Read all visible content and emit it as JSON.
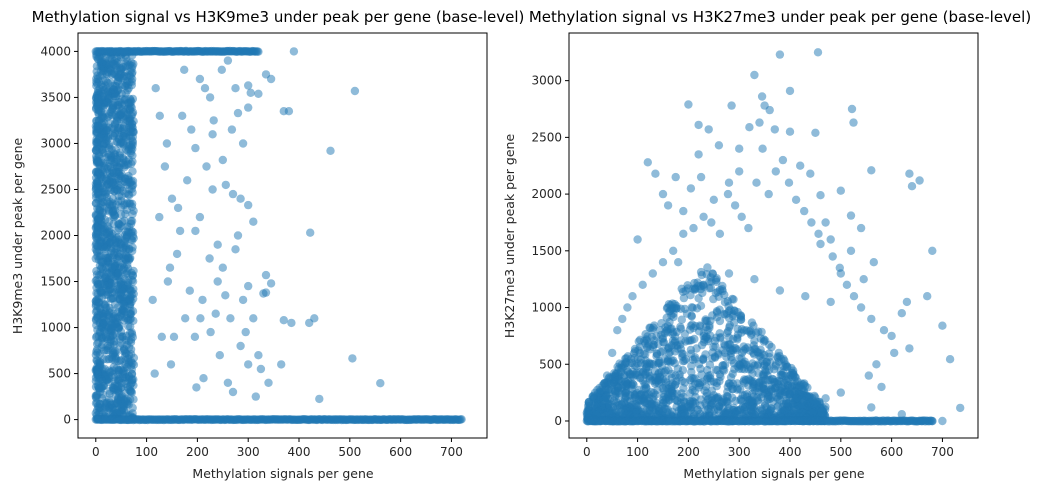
{
  "chart_data": [
    {
      "type": "scatter",
      "title": "Methylation signal vs H3K9me3 under peak per gene (base-level)",
      "xlabel": "Methylation signals per gene",
      "ylabel": "H3K9me3 under peak per gene",
      "xlim": [
        -35,
        770
      ],
      "ylim": [
        -200,
        4200
      ],
      "xticks": [
        0,
        100,
        200,
        300,
        400,
        500,
        600,
        700
      ],
      "yticks": [
        0,
        500,
        1000,
        1500,
        2000,
        2500,
        3000,
        3500,
        4000
      ],
      "xtick_labels": [
        "0",
        "100",
        "200",
        "300",
        "400",
        "500",
        "600",
        "700"
      ],
      "ytick_labels": [
        "0",
        "500",
        "1000",
        "1500",
        "2000",
        "2500",
        "3000",
        "3500",
        "4000"
      ],
      "grid": false,
      "marker_color": "#1f77b4",
      "marker_alpha": 0.5,
      "points": [
        [
          390,
          4000
        ],
        [
          510,
          3570
        ],
        [
          462,
          2920
        ],
        [
          422,
          2030
        ],
        [
          505,
          665
        ],
        [
          560,
          395
        ],
        [
          440,
          225
        ],
        [
          420,
          1050
        ],
        [
          430,
          1100
        ],
        [
          370,
          1080
        ],
        [
          385,
          1050
        ],
        [
          365,
          600
        ],
        [
          340,
          400
        ],
        [
          335,
          1570
        ],
        [
          345,
          1480
        ],
        [
          335,
          1380
        ],
        [
          330,
          1370
        ],
        [
          310,
          2150
        ],
        [
          300,
          2330
        ],
        [
          285,
          2400
        ],
        [
          300,
          3390
        ],
        [
          305,
          3550
        ],
        [
          300,
          3630
        ],
        [
          345,
          3700
        ],
        [
          370,
          3350
        ],
        [
          380,
          3350
        ],
        [
          280,
          3330
        ],
        [
          320,
          3540
        ],
        [
          335,
          3750
        ],
        [
          300,
          1450
        ],
        [
          250,
          1650
        ],
        [
          260,
          3900
        ],
        [
          250,
          2820
        ],
        [
          270,
          2450
        ],
        [
          280,
          2000
        ],
        [
          290,
          1300
        ],
        [
          310,
          1100
        ],
        [
          320,
          700
        ],
        [
          325,
          550
        ],
        [
          260,
          400
        ],
        [
          270,
          300
        ],
        [
          295,
          950
        ],
        [
          275,
          1850
        ],
        [
          240,
          1500
        ],
        [
          230,
          3100
        ],
        [
          225,
          3500
        ],
        [
          215,
          3600
        ],
        [
          205,
          3700
        ],
        [
          210,
          1300
        ],
        [
          195,
          900
        ],
        [
          185,
          1400
        ],
        [
          180,
          2600
        ],
        [
          170,
          3300
        ],
        [
          160,
          1800
        ],
        [
          150,
          2400
        ],
        [
          140,
          3000
        ],
        [
          130,
          900
        ],
        [
          125,
          2200
        ],
        [
          118,
          3600
        ],
        [
          112,
          1300
        ],
        [
          205,
          2200
        ],
        [
          230,
          2500
        ],
        [
          240,
          1900
        ],
        [
          255,
          1350
        ],
        [
          265,
          1100
        ],
        [
          285,
          800
        ],
        [
          300,
          600
        ],
        [
          315,
          250
        ],
        [
          275,
          3600
        ],
        [
          290,
          3000
        ],
        [
          248,
          3800
        ],
        [
          218,
          2750
        ],
        [
          196,
          2950
        ],
        [
          176,
          1100
        ],
        [
          166,
          2050
        ],
        [
          146,
          1650
        ],
        [
          136,
          2750
        ],
        [
          126,
          3300
        ],
        [
          116,
          500
        ],
        [
          224,
          1750
        ],
        [
          236,
          1150
        ],
        [
          244,
          700
        ],
        [
          212,
          450
        ],
        [
          198,
          350
        ],
        [
          188,
          3150
        ],
        [
          174,
          3800
        ],
        [
          162,
          2300
        ],
        [
          154,
          900
        ],
        [
          148,
          600
        ],
        [
          142,
          1500
        ],
        [
          226,
          950
        ],
        [
          206,
          1100
        ],
        [
          196,
          2050
        ],
        [
          232,
          3250
        ],
        [
          256,
          2550
        ],
        [
          268,
          3150
        ]
      ],
      "dense_region": {
        "x_range": [
          0,
          75
        ],
        "y_range": [
          0,
          4000
        ]
      },
      "dense_bands": [
        {
          "x_range": [
            0,
            720
          ],
          "y": 0
        },
        {
          "x_range": [
            0,
            320
          ],
          "y": 4000
        }
      ]
    },
    {
      "type": "scatter",
      "title": "Methylation signal vs H3K27me3 under peak per gene (base-level)",
      "xlabel": "Methylation signals per gene",
      "ylabel": "H3K27me3 under peak per gene",
      "xlim": [
        -35,
        770
      ],
      "ylim": [
        -150,
        3420
      ],
      "xticks": [
        0,
        100,
        200,
        300,
        400,
        500,
        600,
        700
      ],
      "yticks": [
        0,
        500,
        1000,
        1500,
        2000,
        2500,
        3000
      ],
      "xtick_labels": [
        "0",
        "100",
        "200",
        "300",
        "400",
        "500",
        "600",
        "700"
      ],
      "ytick_labels": [
        "0",
        "500",
        "1000",
        "1500",
        "2000",
        "2500",
        "3000"
      ],
      "grid": false,
      "marker_color": "#1f77b4",
      "marker_alpha": 0.5,
      "points": [
        [
          455,
          3250
        ],
        [
          380,
          3230
        ],
        [
          330,
          3050
        ],
        [
          400,
          2910
        ],
        [
          345,
          2860
        ],
        [
          350,
          2780
        ],
        [
          285,
          2780
        ],
        [
          200,
          2790
        ],
        [
          400,
          2550
        ],
        [
          450,
          2540
        ],
        [
          522,
          2750
        ],
        [
          525,
          2630
        ],
        [
          560,
          2210
        ],
        [
          635,
          2180
        ],
        [
          640,
          2070
        ],
        [
          655,
          2120
        ],
        [
          680,
          1500
        ],
        [
          670,
          1100
        ],
        [
          700,
          840
        ],
        [
          715,
          545
        ],
        [
          735,
          115
        ],
        [
          635,
          640
        ],
        [
          630,
          1050
        ],
        [
          620,
          950
        ],
        [
          570,
          500
        ],
        [
          555,
          400
        ],
        [
          120,
          2280
        ],
        [
          135,
          2180
        ],
        [
          220,
          2610
        ],
        [
          240,
          2570
        ],
        [
          220,
          2350
        ],
        [
          260,
          2430
        ],
        [
          300,
          2400
        ],
        [
          320,
          2590
        ],
        [
          340,
          2630
        ],
        [
          360,
          2740
        ],
        [
          370,
          2570
        ],
        [
          420,
          2250
        ],
        [
          440,
          2180
        ],
        [
          460,
          1990
        ],
        [
          500,
          2030
        ],
        [
          520,
          1810
        ],
        [
          540,
          1700
        ],
        [
          480,
          1600
        ],
        [
          460,
          1560
        ],
        [
          300,
          2200
        ],
        [
          280,
          2100
        ],
        [
          250,
          1950
        ],
        [
          230,
          1800
        ],
        [
          210,
          1700
        ],
        [
          190,
          1650
        ],
        [
          170,
          1500
        ],
        [
          150,
          1400
        ],
        [
          130,
          1300
        ],
        [
          110,
          1200
        ],
        [
          90,
          1100
        ],
        [
          520,
          1500
        ],
        [
          500,
          1300
        ],
        [
          540,
          1000
        ],
        [
          560,
          900
        ],
        [
          600,
          750
        ],
        [
          580,
          300
        ],
        [
          500,
          250
        ],
        [
          470,
          200
        ],
        [
          450,
          150
        ],
        [
          560,
          120
        ],
        [
          620,
          60
        ],
        [
          680,
          0
        ],
        [
          660,
          0
        ],
        [
          700,
          0
        ],
        [
          100,
          1600
        ],
        [
          80,
          1000
        ],
        [
          70,
          900
        ],
        [
          60,
          800
        ],
        [
          50,
          600
        ],
        [
          40,
          400
        ],
        [
          150,
          2000
        ],
        [
          160,
          1900
        ],
        [
          175,
          2150
        ],
        [
          190,
          1850
        ],
        [
          205,
          2050
        ],
        [
          225,
          2150
        ],
        [
          245,
          1750
        ],
        [
          262,
          1650
        ],
        [
          278,
          2000
        ],
        [
          292,
          1900
        ],
        [
          305,
          1800
        ],
        [
          318,
          1700
        ],
        [
          334,
          2100
        ],
        [
          346,
          2400
        ],
        [
          358,
          2000
        ],
        [
          372,
          2200
        ],
        [
          386,
          2300
        ],
        [
          398,
          2100
        ],
        [
          412,
          1950
        ],
        [
          428,
          1850
        ],
        [
          442,
          1750
        ],
        [
          456,
          1650
        ],
        [
          470,
          1750
        ],
        [
          484,
          1450
        ],
        [
          498,
          1350
        ],
        [
          512,
          1200
        ],
        [
          526,
          1100
        ],
        [
          545,
          1250
        ],
        [
          565,
          1400
        ],
        [
          585,
          800
        ],
        [
          605,
          600
        ],
        [
          180,
          1400
        ],
        [
          230,
          1200
        ],
        [
          280,
          1300
        ],
        [
          330,
          1250
        ],
        [
          380,
          1150
        ],
        [
          430,
          1100
        ],
        [
          480,
          1050
        ]
      ],
      "dense_region": {
        "x_range": [
          0,
          470
        ],
        "y_range": [
          0,
          1400
        ]
      },
      "dense_bands": [
        {
          "x_range": [
            0,
            680
          ],
          "y": 0
        }
      ]
    }
  ]
}
